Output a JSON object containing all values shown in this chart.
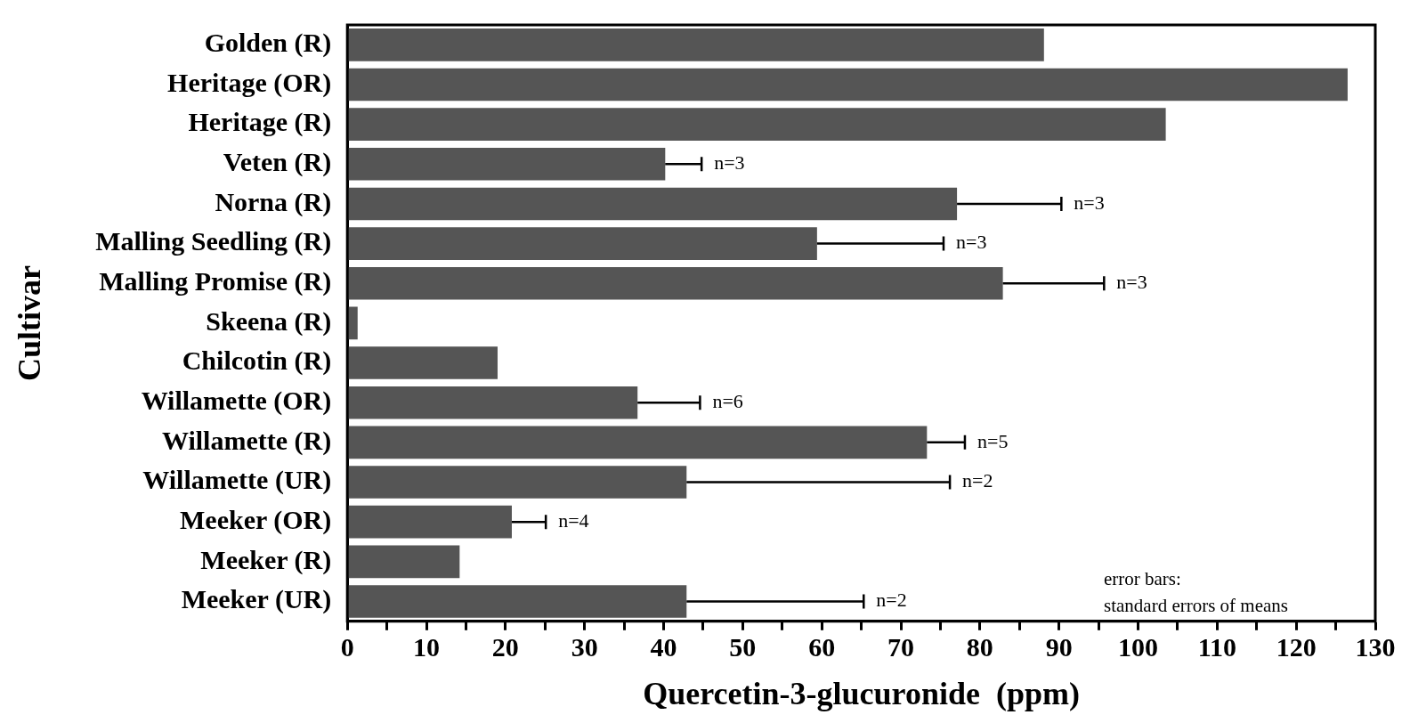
{
  "chart_data": {
    "type": "bar",
    "orientation": "horizontal",
    "xlabel": "Quercetin-3-glucuronide  (ppm)",
    "ylabel": "Cultivar",
    "categories": [
      "Golden (R)",
      "Heritage (OR)",
      "Heritage (R)",
      "Veten (R)",
      "Norna (R)",
      "Malling Seedling (R)",
      "Malling Promise (R)",
      "Skeena (R)",
      "Chilcotin (R)",
      "Willamette (OR)",
      "Willamette (R)",
      "Willamette (UR)",
      "Meeker (OR)",
      "Meeker (R)",
      "Meeker (UR)"
    ],
    "values": [
      88.1,
      126.5,
      103.5,
      40.2,
      77.1,
      59.4,
      82.9,
      1.3,
      19,
      36.7,
      73.3,
      42.9,
      20.8,
      14.2,
      42.9
    ],
    "errors": [
      null,
      null,
      null,
      4.6,
      13.2,
      16,
      12.8,
      null,
      null,
      7.9,
      4.8,
      33.3,
      4.3,
      null,
      22.4
    ],
    "color": "#555555",
    "xlim": [
      0,
      130
    ],
    "xticks": [
      0,
      {
        "value": 5,
        "label": null
      },
      10,
      {
        "value": 15,
        "label": null
      },
      20,
      {
        "value": 25,
        "label": null
      },
      30,
      {
        "value": 35,
        "label": null
      },
      40,
      {
        "value": 45,
        "label": null
      },
      50,
      {
        "value": 55,
        "label": null
      },
      60,
      {
        "value": 65,
        "label": null
      },
      70,
      {
        "value": 75,
        "label": null
      },
      80,
      {
        "value": 85,
        "label": null
      },
      90,
      {
        "value": 95,
        "label": null
      },
      100,
      {
        "value": 105,
        "label": null
      },
      110,
      {
        "value": 115,
        "label": null
      },
      120,
      {
        "value": 125,
        "label": null
      },
      130
    ],
    "annotations": [
      {
        "text": "n=3",
        "x": 44.8,
        "y": "Veten (R)"
      },
      {
        "text": "n=3",
        "x": 90.3,
        "y": "Norna (R)"
      },
      {
        "text": "n=3",
        "x": 75.4,
        "y": "Malling Seedling (R)"
      },
      {
        "text": "n=3",
        "x": 95.7,
        "y": "Malling Promise (R)"
      },
      {
        "text": "n=6",
        "x": 44.6,
        "y": "Willamette (OR)"
      },
      {
        "text": "n=5",
        "x": 78.1,
        "y": "Willamette (R)"
      },
      {
        "text": "n=2",
        "x": 76.2,
        "y": "Willamette (UR)"
      },
      {
        "text": "n=4",
        "x": 25.1,
        "y": "Meeker (OR)"
      },
      {
        "text": "n=2",
        "x": 65.3,
        "y": "Meeker (UR)"
      },
      "error bars:\nstandard errors of means"
    ]
  }
}
